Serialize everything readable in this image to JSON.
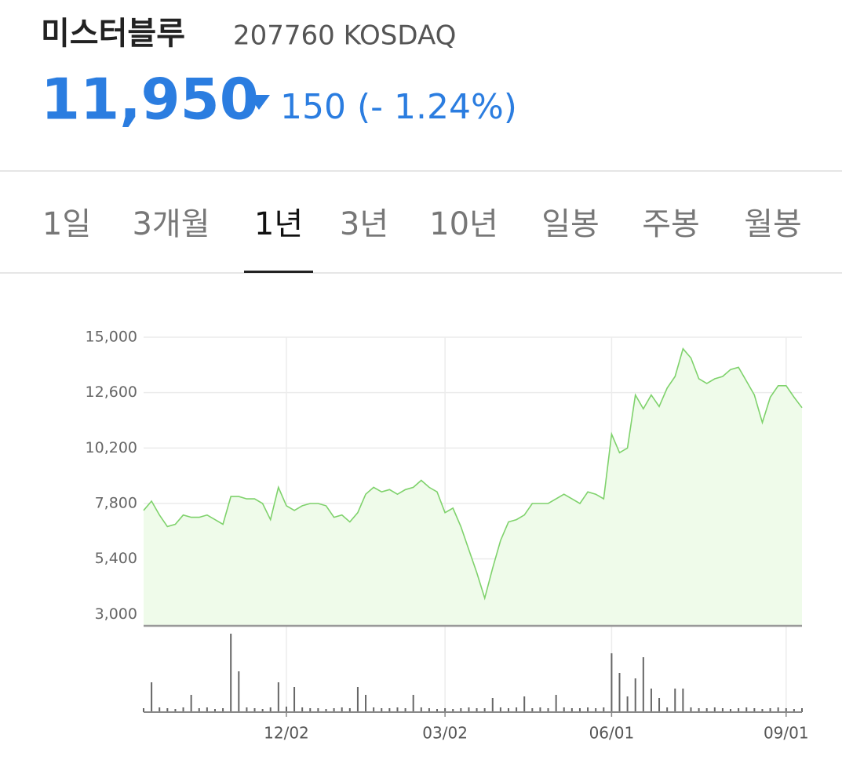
{
  "header": {
    "name": "미스터블루",
    "code": "207760 KOSDAQ",
    "price": "11,950",
    "change": "150",
    "change_pct": "(- 1.24%)"
  },
  "tabs": {
    "items": [
      "1일",
      "3개월",
      "1년",
      "3년",
      "10년",
      "일봉",
      "주봉",
      "월봉"
    ],
    "active": 2
  },
  "chart_data": {
    "type": "line",
    "categories": [
      null,
      null,
      null,
      null,
      null,
      null,
      null,
      null,
      null,
      null,
      null,
      null,
      null,
      null,
      null,
      null,
      null,
      null,
      "12/02",
      null,
      null,
      null,
      null,
      null,
      null,
      null,
      null,
      null,
      null,
      null,
      null,
      null,
      null,
      null,
      null,
      null,
      null,
      null,
      "03/02",
      null,
      null,
      null,
      null,
      null,
      null,
      null,
      null,
      null,
      null,
      null,
      null,
      null,
      null,
      null,
      null,
      null,
      null,
      null,
      null,
      "06/01",
      null,
      null,
      null,
      null,
      null,
      null,
      null,
      null,
      null,
      null,
      null,
      null,
      null,
      null,
      null,
      null,
      null,
      null,
      null,
      null,
      null,
      "09/01",
      null,
      null
    ],
    "series": [
      {
        "name": "price",
        "type": "line",
        "color": "#7fd26c",
        "values": [
          7500,
          7900,
          7300,
          6800,
          6900,
          7300,
          7200,
          7200,
          7300,
          7100,
          6900,
          8100,
          8100,
          8000,
          8000,
          7800,
          7100,
          8500,
          7700,
          7500,
          7700,
          7800,
          7800,
          7700,
          7200,
          7300,
          7000,
          7400,
          8200,
          8500,
          8300,
          8400,
          8200,
          8400,
          8500,
          8800,
          8500,
          8300,
          7400,
          7600,
          6800,
          5800,
          4800,
          3700,
          5000,
          6200,
          7000,
          7100,
          7300,
          7800,
          7800,
          7800,
          8000,
          8200,
          8000,
          7800,
          8300,
          8200,
          8000,
          10800,
          10000,
          10200,
          12500,
          11900,
          12500,
          12000,
          12800,
          13300,
          14500,
          14100,
          13200,
          13000,
          13200,
          13300,
          13600,
          13700,
          13100,
          12500,
          11300,
          12400,
          12900,
          12900,
          12400,
          11950
        ]
      },
      {
        "name": "volume",
        "type": "bar",
        "axis": "y2",
        "color": "#666666",
        "values": [
          5,
          38,
          6,
          5,
          4,
          6,
          22,
          5,
          6,
          4,
          5,
          100,
          52,
          6,
          5,
          4,
          6,
          38,
          7,
          32,
          6,
          5,
          5,
          4,
          5,
          6,
          5,
          32,
          22,
          6,
          5,
          5,
          6,
          5,
          22,
          6,
          5,
          4,
          5,
          4,
          5,
          6,
          5,
          5,
          18,
          6,
          5,
          6,
          20,
          5,
          6,
          5,
          22,
          6,
          5,
          5,
          6,
          5,
          6,
          75,
          50,
          20,
          43,
          70,
          30,
          18,
          6,
          30,
          30,
          6,
          5,
          5,
          6,
          5,
          4,
          5,
          6,
          5,
          4,
          5,
          6,
          5,
          4,
          5
        ]
      }
    ],
    "ylim": [
      2500,
      15000
    ],
    "yticks": [
      {
        "value": 15000,
        "label": "15,000"
      },
      {
        "value": 12600,
        "label": "12,600"
      },
      {
        "value": 10200,
        "label": "10,200"
      },
      {
        "value": 7800,
        "label": "7,800"
      },
      {
        "value": 5400,
        "label": "5,400"
      },
      {
        "value": 3000,
        "label": "3,000"
      }
    ],
    "y2lim": [
      0,
      100
    ],
    "grid": true
  }
}
